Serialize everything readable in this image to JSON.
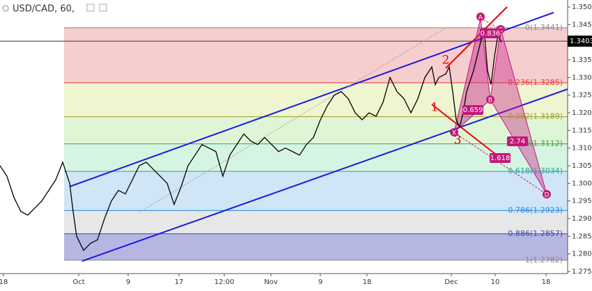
{
  "chart_data": {
    "type": "line",
    "title": "USD/CAD, 60,",
    "color": "#000000",
    "x": [
      0,
      10,
      20,
      30,
      40,
      50,
      60,
      70,
      80,
      90,
      100,
      105,
      110,
      115,
      120,
      130,
      140,
      150,
      160,
      170,
      180,
      190,
      200,
      210,
      220,
      230,
      240,
      250,
      260,
      270,
      280,
      290,
      300,
      310,
      320,
      330,
      340,
      350,
      360,
      370,
      380,
      390,
      400,
      410,
      420,
      430,
      440,
      450,
      460,
      470,
      480,
      490,
      500,
      510,
      520,
      530,
      540,
      550,
      560,
      570,
      580,
      590,
      600,
      610,
      620,
      625,
      630,
      640,
      645,
      650,
      655,
      660,
      665,
      670,
      680,
      690,
      695,
      700,
      705,
      710,
      715,
      720
    ],
    "values": [
      1.305,
      1.302,
      1.296,
      1.292,
      1.291,
      1.293,
      1.295,
      1.298,
      1.301,
      1.306,
      1.3,
      1.292,
      1.285,
      1.283,
      1.281,
      1.283,
      1.284,
      1.29,
      1.295,
      1.298,
      1.297,
      1.301,
      1.305,
      1.306,
      1.304,
      1.302,
      1.3,
      1.294,
      1.299,
      1.305,
      1.308,
      1.311,
      1.31,
      1.309,
      1.302,
      1.308,
      1.311,
      1.314,
      1.312,
      1.311,
      1.313,
      1.311,
      1.309,
      1.31,
      1.309,
      1.308,
      1.311,
      1.313,
      1.318,
      1.322,
      1.325,
      1.326,
      1.324,
      1.32,
      1.318,
      1.32,
      1.319,
      1.323,
      1.33,
      1.326,
      1.324,
      1.32,
      1.324,
      1.33,
      1.333,
      1.328,
      1.33,
      1.331,
      1.333,
      1.326,
      1.318,
      1.316,
      1.32,
      1.326,
      1.332,
      1.34,
      1.344,
      1.332,
      1.328,
      1.336,
      1.342,
      1.34
    ],
    "xlim": [
      0,
      815
    ],
    "xticks": [
      {
        "value": 5,
        "label": "18"
      },
      {
        "value": 113,
        "label": "Oct"
      },
      {
        "value": 184,
        "label": "9"
      },
      {
        "value": 257,
        "label": "17"
      },
      {
        "value": 322,
        "label": "12:00"
      },
      {
        "value": 389,
        "label": "Nov"
      },
      {
        "value": 460,
        "label": "9"
      },
      {
        "value": 527,
        "label": "18"
      },
      {
        "value": 648,
        "label": "Dec"
      },
      {
        "value": 711,
        "label": "10"
      },
      {
        "value": 784,
        "label": "18"
      }
    ],
    "ylim": [
      1.275,
      1.35
    ],
    "yticks": [
      {
        "value": 1.275,
        "label": "1.2750"
      },
      {
        "value": 1.28,
        "label": "1.2800"
      },
      {
        "value": 1.285,
        "label": "1.2850"
      },
      {
        "value": 1.29,
        "label": "1.2900"
      },
      {
        "value": 1.295,
        "label": "1.2950"
      },
      {
        "value": 1.3,
        "label": "1.3000"
      },
      {
        "value": 1.305,
        "label": "1.3050"
      },
      {
        "value": 1.31,
        "label": "1.3100"
      },
      {
        "value": 1.315,
        "label": "1.3150"
      },
      {
        "value": 1.32,
        "label": "1.3200"
      },
      {
        "value": 1.325,
        "label": "1.3250"
      },
      {
        "value": 1.33,
        "label": "1.3300"
      },
      {
        "value": 1.335,
        "label": "1.3350"
      },
      {
        "value": 1.34,
        "label": "1.3400"
      },
      {
        "value": 1.345,
        "label": "1.3450"
      },
      {
        "value": 1.35,
        "label": "1.3500"
      }
    ],
    "last_price": {
      "value": 1.3403,
      "label": "1.3403"
    },
    "fib_levels": [
      {
        "value": 1.3441,
        "label": "0(1.3441)",
        "color": "#888888",
        "fill": "rgba(229,115,115,0.35)"
      },
      {
        "value": 1.3285,
        "label": "0.236(1.3285)",
        "color": "#e53935",
        "fill": "rgba(205,225,120,0.35)"
      },
      {
        "value": 1.3189,
        "label": "0.382(1.3189)",
        "color": "#9e9d24",
        "fill": "rgba(150,225,120,0.3)"
      },
      {
        "value": 1.3112,
        "label": "0.5(1.3112)",
        "color": "#43a047",
        "fill": "rgba(120,220,160,0.3)"
      },
      {
        "value": 1.3034,
        "label": "0.618(1.3034)",
        "color": "#26a69a",
        "fill": "rgba(120,180,230,0.35)"
      },
      {
        "value": 1.2923,
        "label": "0.786(1.2923)",
        "color": "#1e88e5",
        "fill": "rgba(185,185,185,0.35)"
      },
      {
        "value": 1.2857,
        "label": "0.886(1.2857)",
        "color": "#3949ab",
        "fill": "rgba(110,110,200,0.5)"
      },
      {
        "value": 1.2782,
        "label": "1(1.2782)",
        "color": "#888888"
      }
    ],
    "pattern_points": [
      "X",
      "A",
      "B",
      "C",
      "D"
    ],
    "pattern_ratios": [
      0.836,
      0.659,
      2.74,
      1.618
    ],
    "waves": [
      "1",
      "2",
      "3"
    ]
  }
}
